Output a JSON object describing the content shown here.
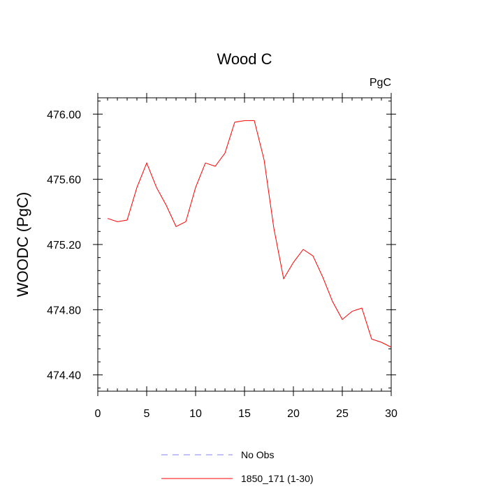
{
  "chart_data": {
    "type": "line",
    "title": "Wood C",
    "units_label": "PgC",
    "xlabel": "",
    "ylabel": "WOODC  (PgC)",
    "xlim": [
      0,
      30
    ],
    "ylim": [
      474.3,
      476.1
    ],
    "x_ticks": [
      0,
      5,
      10,
      15,
      20,
      25,
      30
    ],
    "x_tick_labels": [
      "0",
      "5",
      "10",
      "15",
      "20",
      "25",
      "30"
    ],
    "y_ticks": [
      474.4,
      474.8,
      475.2,
      475.6,
      476.0
    ],
    "y_tick_labels": [
      "474.40",
      "474.80",
      "475.20",
      "475.60",
      "476.00"
    ],
    "grid": false,
    "legend_position": "bottom",
    "series": [
      {
        "name": "No Obs",
        "color": "#8080ff",
        "dash": "dashed",
        "x": [],
        "y": []
      },
      {
        "name": "1850_171 (1-30)",
        "color": "#ff0000",
        "dash": "solid",
        "x": [
          1,
          2,
          3,
          4,
          5,
          6,
          7,
          8,
          9,
          10,
          11,
          12,
          13,
          14,
          15,
          16,
          17,
          18,
          19,
          20,
          21,
          22,
          23,
          24,
          25,
          26,
          27,
          28,
          29,
          30
        ],
        "y": [
          475.36,
          475.34,
          475.35,
          475.55,
          475.7,
          475.55,
          475.44,
          475.31,
          475.34,
          475.55,
          475.7,
          475.68,
          475.76,
          475.95,
          475.96,
          475.96,
          475.72,
          475.3,
          474.99,
          475.09,
          475.17,
          475.13,
          475.0,
          474.85,
          474.74,
          474.79,
          474.81,
          474.62,
          474.6,
          474.57
        ]
      }
    ]
  }
}
